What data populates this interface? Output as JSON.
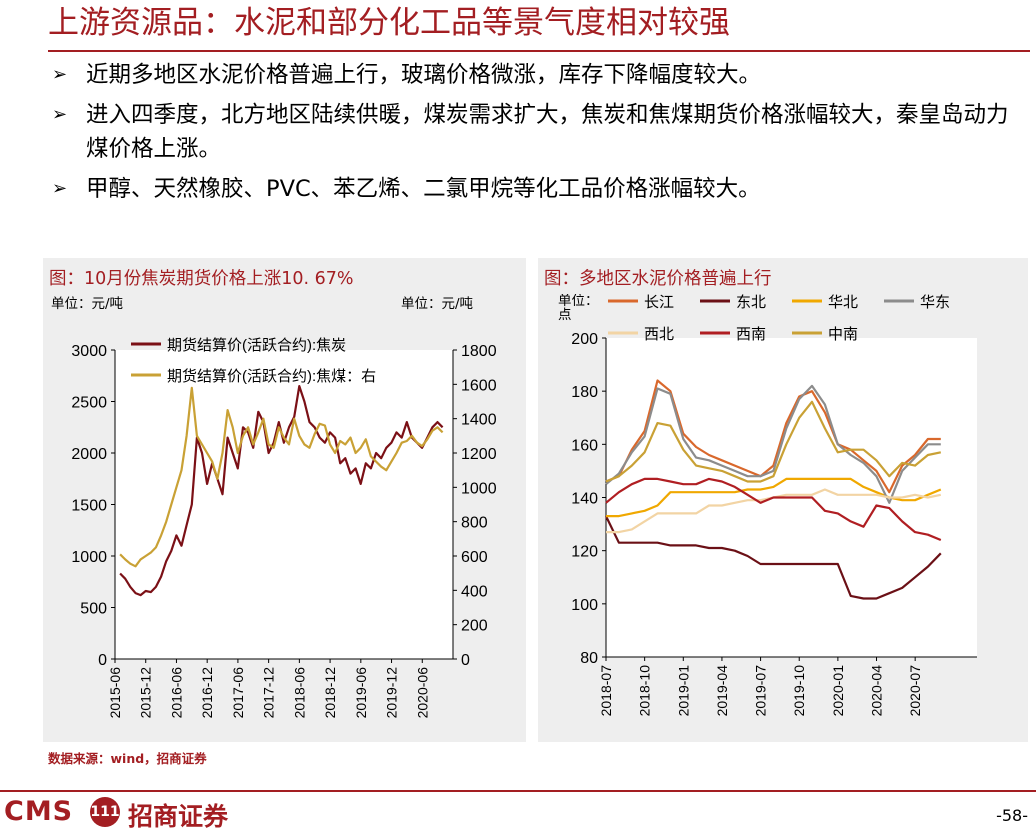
{
  "title": "上游资源品：水泥和部分化工品等景气度相对较强",
  "bullets": [
    "近期多地区水泥价格普遍上行，玻璃价格微涨，库存下降幅度较大。",
    "进入四季度，北方地区陆续供暖，煤炭需求扩大，焦炭和焦煤期货价格涨幅较大，秦皇岛动力煤价格上涨。",
    "甲醇、天然橡胶、PVC、苯乙烯、二氯甲烷等化工品价格涨幅较大。"
  ],
  "bullet_marker": "➢",
  "left_panel": {
    "title": "图：10月份焦炭期货价格上涨10. 67%",
    "unit_left": "单位：元/吨",
    "unit_right": "单位：元/吨"
  },
  "right_panel": {
    "title": "图：多地区水泥价格普遍上行",
    "unit": "单位：点"
  },
  "source": "数据来源：wind，招商证券",
  "footer": {
    "cms": "CMS",
    "logo_glyph": "111",
    "brand": "招商证券",
    "page": "-58-"
  },
  "colors": {
    "accent": "#a31e22"
  },
  "chart_data": [
    {
      "type": "line",
      "title": "10月份焦炭期货价格上涨10. 67%",
      "x_start": 2015.5,
      "x_end": 2020.83,
      "x_step": 0.0833,
      "x_ticks": [
        {
          "label": "2015-06",
          "x": 2015.417
        },
        {
          "label": "2015-12",
          "x": 2015.917
        },
        {
          "label": "2016-06",
          "x": 2016.417
        },
        {
          "label": "2016-12",
          "x": 2016.917
        },
        {
          "label": "2017-06",
          "x": 2017.417
        },
        {
          "label": "2017-12",
          "x": 2017.917
        },
        {
          "label": "2018-06",
          "x": 2018.417
        },
        {
          "label": "2018-12",
          "x": 2018.917
        },
        {
          "label": "2019-06",
          "x": 2019.417
        },
        {
          "label": "2019-12",
          "x": 2019.917
        },
        {
          "label": "2020-06",
          "x": 2020.417
        }
      ],
      "x_range": [
        2015.417,
        2020.917
      ],
      "y_left": {
        "range": [
          0,
          3000
        ],
        "ticks": [
          0,
          500,
          1000,
          1500,
          2000,
          2500,
          3000
        ]
      },
      "y_right": {
        "range": [
          0,
          1800
        ],
        "ticks": [
          0,
          200,
          400,
          600,
          800,
          1000,
          1200,
          1400,
          1600,
          1800
        ]
      },
      "series": [
        {
          "name": "期货结算价(活跃合约):焦炭",
          "color": "#7b1016",
          "axis": "left",
          "values": [
            830,
            780,
            700,
            640,
            620,
            660,
            650,
            700,
            800,
            950,
            1050,
            1200,
            1100,
            1300,
            1500,
            2150,
            2000,
            1700,
            1900,
            1750,
            1600,
            2150,
            2000,
            1850,
            2250,
            2200,
            2050,
            2400,
            2300,
            2000,
            2100,
            2300,
            2100,
            2250,
            2350,
            2650,
            2500,
            2300,
            2250,
            2150,
            2100,
            2200,
            2150,
            1900,
            1950,
            1800,
            1850,
            1700,
            1900,
            1850,
            2000,
            1950,
            2050,
            2100,
            2200,
            2150,
            2300,
            2150,
            2100,
            2050,
            2150,
            2250,
            2300,
            2250
          ]
        },
        {
          "name": "期货结算价(活跃合约):焦煤：右",
          "color": "#c9a135",
          "axis": "right",
          "values": [
            610,
            580,
            555,
            540,
            580,
            600,
            620,
            650,
            720,
            800,
            900,
            1000,
            1100,
            1300,
            1580,
            1300,
            1250,
            1200,
            1150,
            1050,
            1200,
            1450,
            1350,
            1200,
            1300,
            1350,
            1250,
            1320,
            1400,
            1250,
            1230,
            1350,
            1290,
            1250,
            1400,
            1300,
            1250,
            1230,
            1310,
            1370,
            1360,
            1250,
            1200,
            1270,
            1250,
            1290,
            1200,
            1230,
            1280,
            1180,
            1150,
            1120,
            1100,
            1150,
            1200,
            1260,
            1270,
            1300,
            1260,
            1240,
            1280,
            1330,
            1350,
            1320
          ]
        }
      ]
    },
    {
      "type": "line",
      "title": "多地区水泥价格普遍上行",
      "ylabel": "单位：点",
      "x_start": 2018.5,
      "x_end": 2020.875,
      "x_step": 0.0833,
      "x_ticks": [
        {
          "label": "2018-07",
          "x": 2018.5
        },
        {
          "label": "2018-10",
          "x": 2018.75
        },
        {
          "label": "2019-01",
          "x": 2019.0
        },
        {
          "label": "2019-04",
          "x": 2019.25
        },
        {
          "label": "2019-07",
          "x": 2019.5
        },
        {
          "label": "2019-10",
          "x": 2019.75
        },
        {
          "label": "2020-01",
          "x": 2020.0
        },
        {
          "label": "2020-04",
          "x": 2020.25
        },
        {
          "label": "2020-07",
          "x": 2020.5
        }
      ],
      "x_range": [
        2018.5,
        2020.9
      ],
      "ylim": [
        80,
        200
      ],
      "y_ticks": [
        80,
        100,
        120,
        140,
        160,
        180,
        200
      ],
      "series": [
        {
          "name": "长江",
          "color": "#d9682c",
          "values": [
            146,
            148,
            158,
            165,
            184,
            180,
            164,
            159,
            156,
            154,
            152,
            150,
            148,
            152,
            168,
            178,
            180,
            172,
            160,
            158,
            154,
            150,
            142,
            152,
            156,
            162,
            162
          ]
        },
        {
          "name": "东北",
          "color": "#6b1016",
          "values": [
            133,
            123,
            123,
            123,
            123,
            122,
            122,
            122,
            121,
            121,
            120,
            118,
            115,
            115,
            115,
            115,
            115,
            115,
            115,
            103,
            102,
            102,
            104,
            106,
            110,
            114,
            119
          ]
        },
        {
          "name": "华北",
          "color": "#f0a800",
          "values": [
            133,
            133,
            134,
            135,
            137,
            142,
            142,
            142,
            142,
            142,
            142,
            143,
            143,
            144,
            147,
            147,
            147,
            147,
            147,
            147,
            144,
            142,
            140,
            139,
            139,
            141,
            143
          ]
        },
        {
          "name": "华东",
          "color": "#8c8c8c",
          "values": [
            145,
            149,
            157,
            163,
            181,
            179,
            162,
            155,
            154,
            152,
            150,
            148,
            148,
            150,
            166,
            177,
            182,
            175,
            160,
            156,
            153,
            148,
            138,
            150,
            155,
            160,
            160
          ]
        },
        {
          "name": "西北",
          "color": "#f2d4a4",
          "values": [
            127,
            127,
            128,
            131,
            134,
            134,
            134,
            134,
            137,
            137,
            138,
            139,
            139,
            140,
            141,
            141,
            141,
            143,
            141,
            141,
            141,
            141,
            140,
            140,
            141,
            140,
            141
          ]
        },
        {
          "name": "西南",
          "color": "#b01e22",
          "values": [
            138,
            142,
            145,
            147,
            147,
            146,
            145,
            145,
            147,
            146,
            144,
            141,
            138,
            140,
            140,
            140,
            140,
            135,
            134,
            131,
            129,
            137,
            136,
            131,
            127,
            126,
            124
          ]
        },
        {
          "name": "中南",
          "color": "#c9a135",
          "values": [
            146,
            148,
            152,
            157,
            168,
            167,
            158,
            152,
            151,
            150,
            148,
            146,
            146,
            148,
            160,
            170,
            176,
            166,
            157,
            158,
            158,
            154,
            148,
            153,
            152,
            156,
            157
          ]
        }
      ]
    }
  ]
}
